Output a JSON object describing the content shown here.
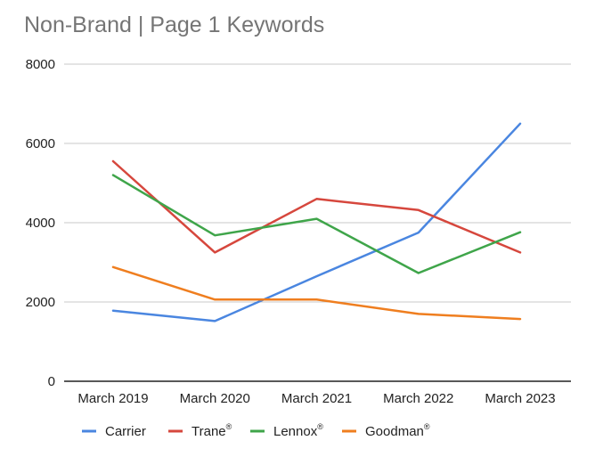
{
  "chart_data": {
    "type": "line",
    "title": "Non-Brand | Page 1 Keywords",
    "xlabel": "",
    "ylabel": "",
    "categories": [
      "March 2019",
      "March 2020",
      "March 2021",
      "March 2022",
      "March 2023"
    ],
    "ylim": [
      0,
      8000
    ],
    "yticks": [
      0,
      2000,
      4000,
      6000,
      8000
    ],
    "grid": true,
    "legend_position": "bottom-left",
    "series": [
      {
        "name": "Carrier",
        "color": "#4a86e0",
        "values": [
          1780,
          1520,
          2650,
          3750,
          6500
        ]
      },
      {
        "name": "Trane",
        "mark": "®",
        "color": "#d6473d",
        "values": [
          5550,
          3250,
          4600,
          4320,
          3250
        ]
      },
      {
        "name": "Lennox",
        "mark": "®",
        "color": "#3fa54a",
        "values": [
          5200,
          3680,
          4100,
          2730,
          3760
        ]
      },
      {
        "name": "Goodman",
        "mark": "®",
        "color": "#ef7e1f",
        "values": [
          2880,
          2060,
          2060,
          1700,
          1570
        ]
      }
    ]
  }
}
